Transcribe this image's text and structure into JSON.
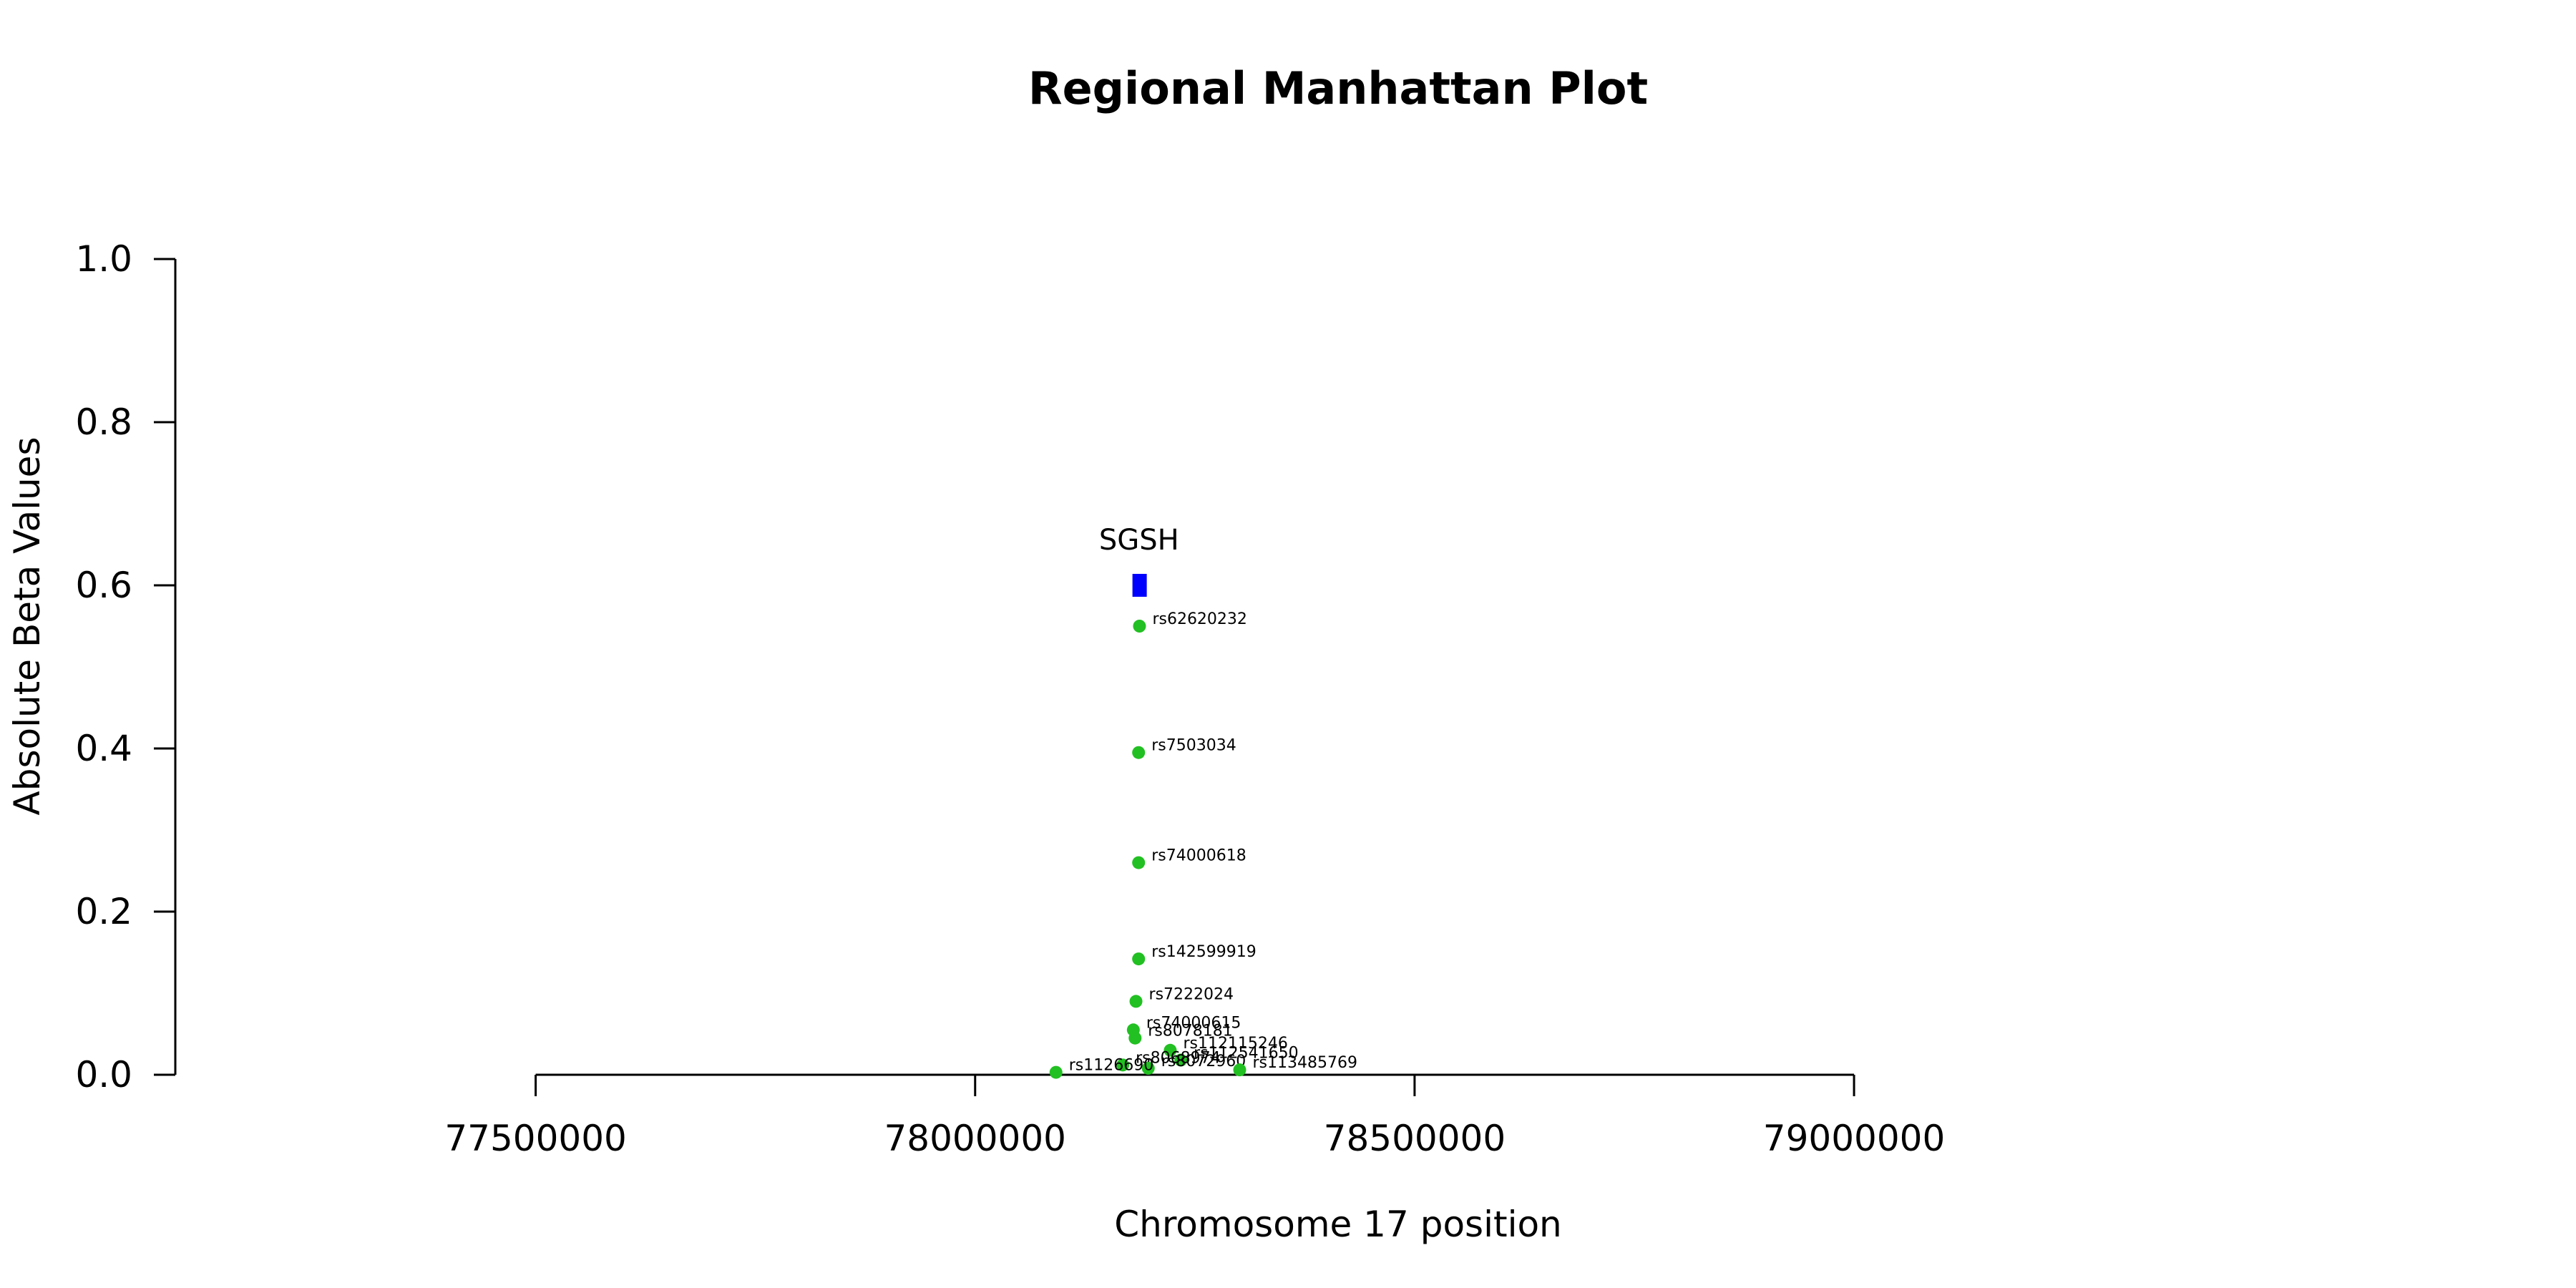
{
  "chart_data": {
    "type": "scatter",
    "title": "Regional Manhattan Plot",
    "xlabel": "Chromosome 17 position",
    "ylabel": "Absolute Beta Values",
    "xlim": [
      77090000,
      79740000
    ],
    "ylim": [
      0,
      1.0
    ],
    "x_ticks": [
      77500000,
      78000000,
      78500000,
      79000000
    ],
    "y_ticks": [
      0.0,
      0.2,
      0.4,
      0.6,
      0.8,
      1.0
    ],
    "x_tick_labels": [
      "77500000",
      "78000000",
      "78500000",
      "79000000"
    ],
    "y_tick_labels": [
      "0.0",
      "0.2",
      "0.4",
      "0.6",
      "0.8",
      "1.0"
    ],
    "grid": false,
    "point_color": "#22c022",
    "gene_color": "#0000ff",
    "gene": {
      "name": "SGSH",
      "start": 78179000,
      "end": 78194000,
      "y": 0.6
    },
    "points": [
      {
        "label": "rs62620232",
        "x": 78187000,
        "y": 0.55
      },
      {
        "label": "rs7503034",
        "x": 78186000,
        "y": 0.395
      },
      {
        "label": "rs74000618",
        "x": 78186000,
        "y": 0.26
      },
      {
        "label": "rs142599919",
        "x": 78186000,
        "y": 0.142
      },
      {
        "label": "rs7222024",
        "x": 78183000,
        "y": 0.09
      },
      {
        "label": "rs74000615",
        "x": 78180000,
        "y": 0.055
      },
      {
        "label": "rs8078181",
        "x": 78182000,
        "y": 0.045
      },
      {
        "label": "rs112115246",
        "x": 78222000,
        "y": 0.03
      },
      {
        "label": "rs112541650",
        "x": 78234000,
        "y": 0.018
      },
      {
        "label": "rs8068974",
        "x": 78168000,
        "y": 0.012
      },
      {
        "label": "rs8072960",
        "x": 78197000,
        "y": 0.008
      },
      {
        "label": "rs113485769",
        "x": 78301000,
        "y": 0.006
      },
      {
        "label": "rs1126690",
        "x": 78092000,
        "y": 0.003
      }
    ]
  }
}
